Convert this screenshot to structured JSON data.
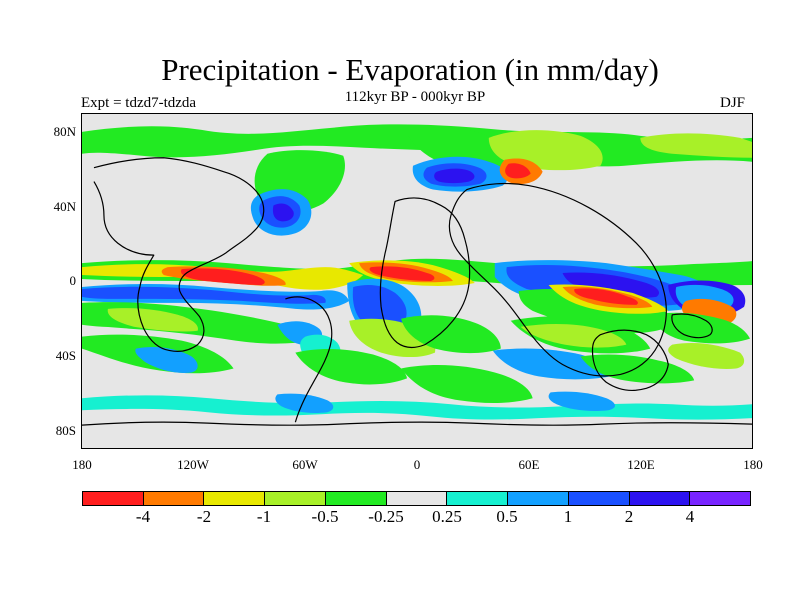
{
  "title": "Precipitation - Evaporation (in mm/day)",
  "subtitle": "112kyr BP - 000kyr BP",
  "experiment_label": "Expt = tdzd7-tdzda",
  "season": "DJF",
  "map_axes": {
    "y_ticks": [
      "80N",
      "40N",
      "0",
      "40S",
      "80S"
    ],
    "x_ticks": [
      "180",
      "120W",
      "60W",
      "0",
      "60E",
      "120E",
      "180"
    ]
  },
  "colorbar": {
    "colors": [
      "#ff1e1e",
      "#ff7a00",
      "#e8e800",
      "#a8f028",
      "#22ea22",
      "#e6e6e6",
      "#16f0d0",
      "#12a0ff",
      "#1a50ff",
      "#2c12f0",
      "#7824ff"
    ],
    "labels": [
      "-4",
      "-2",
      "-1",
      "-0.5",
      "-0.25",
      "0.25",
      "0.5",
      "1",
      "2",
      "4"
    ]
  },
  "colors": {
    "background": "#e6e6e6",
    "coastline": "#000000"
  }
}
